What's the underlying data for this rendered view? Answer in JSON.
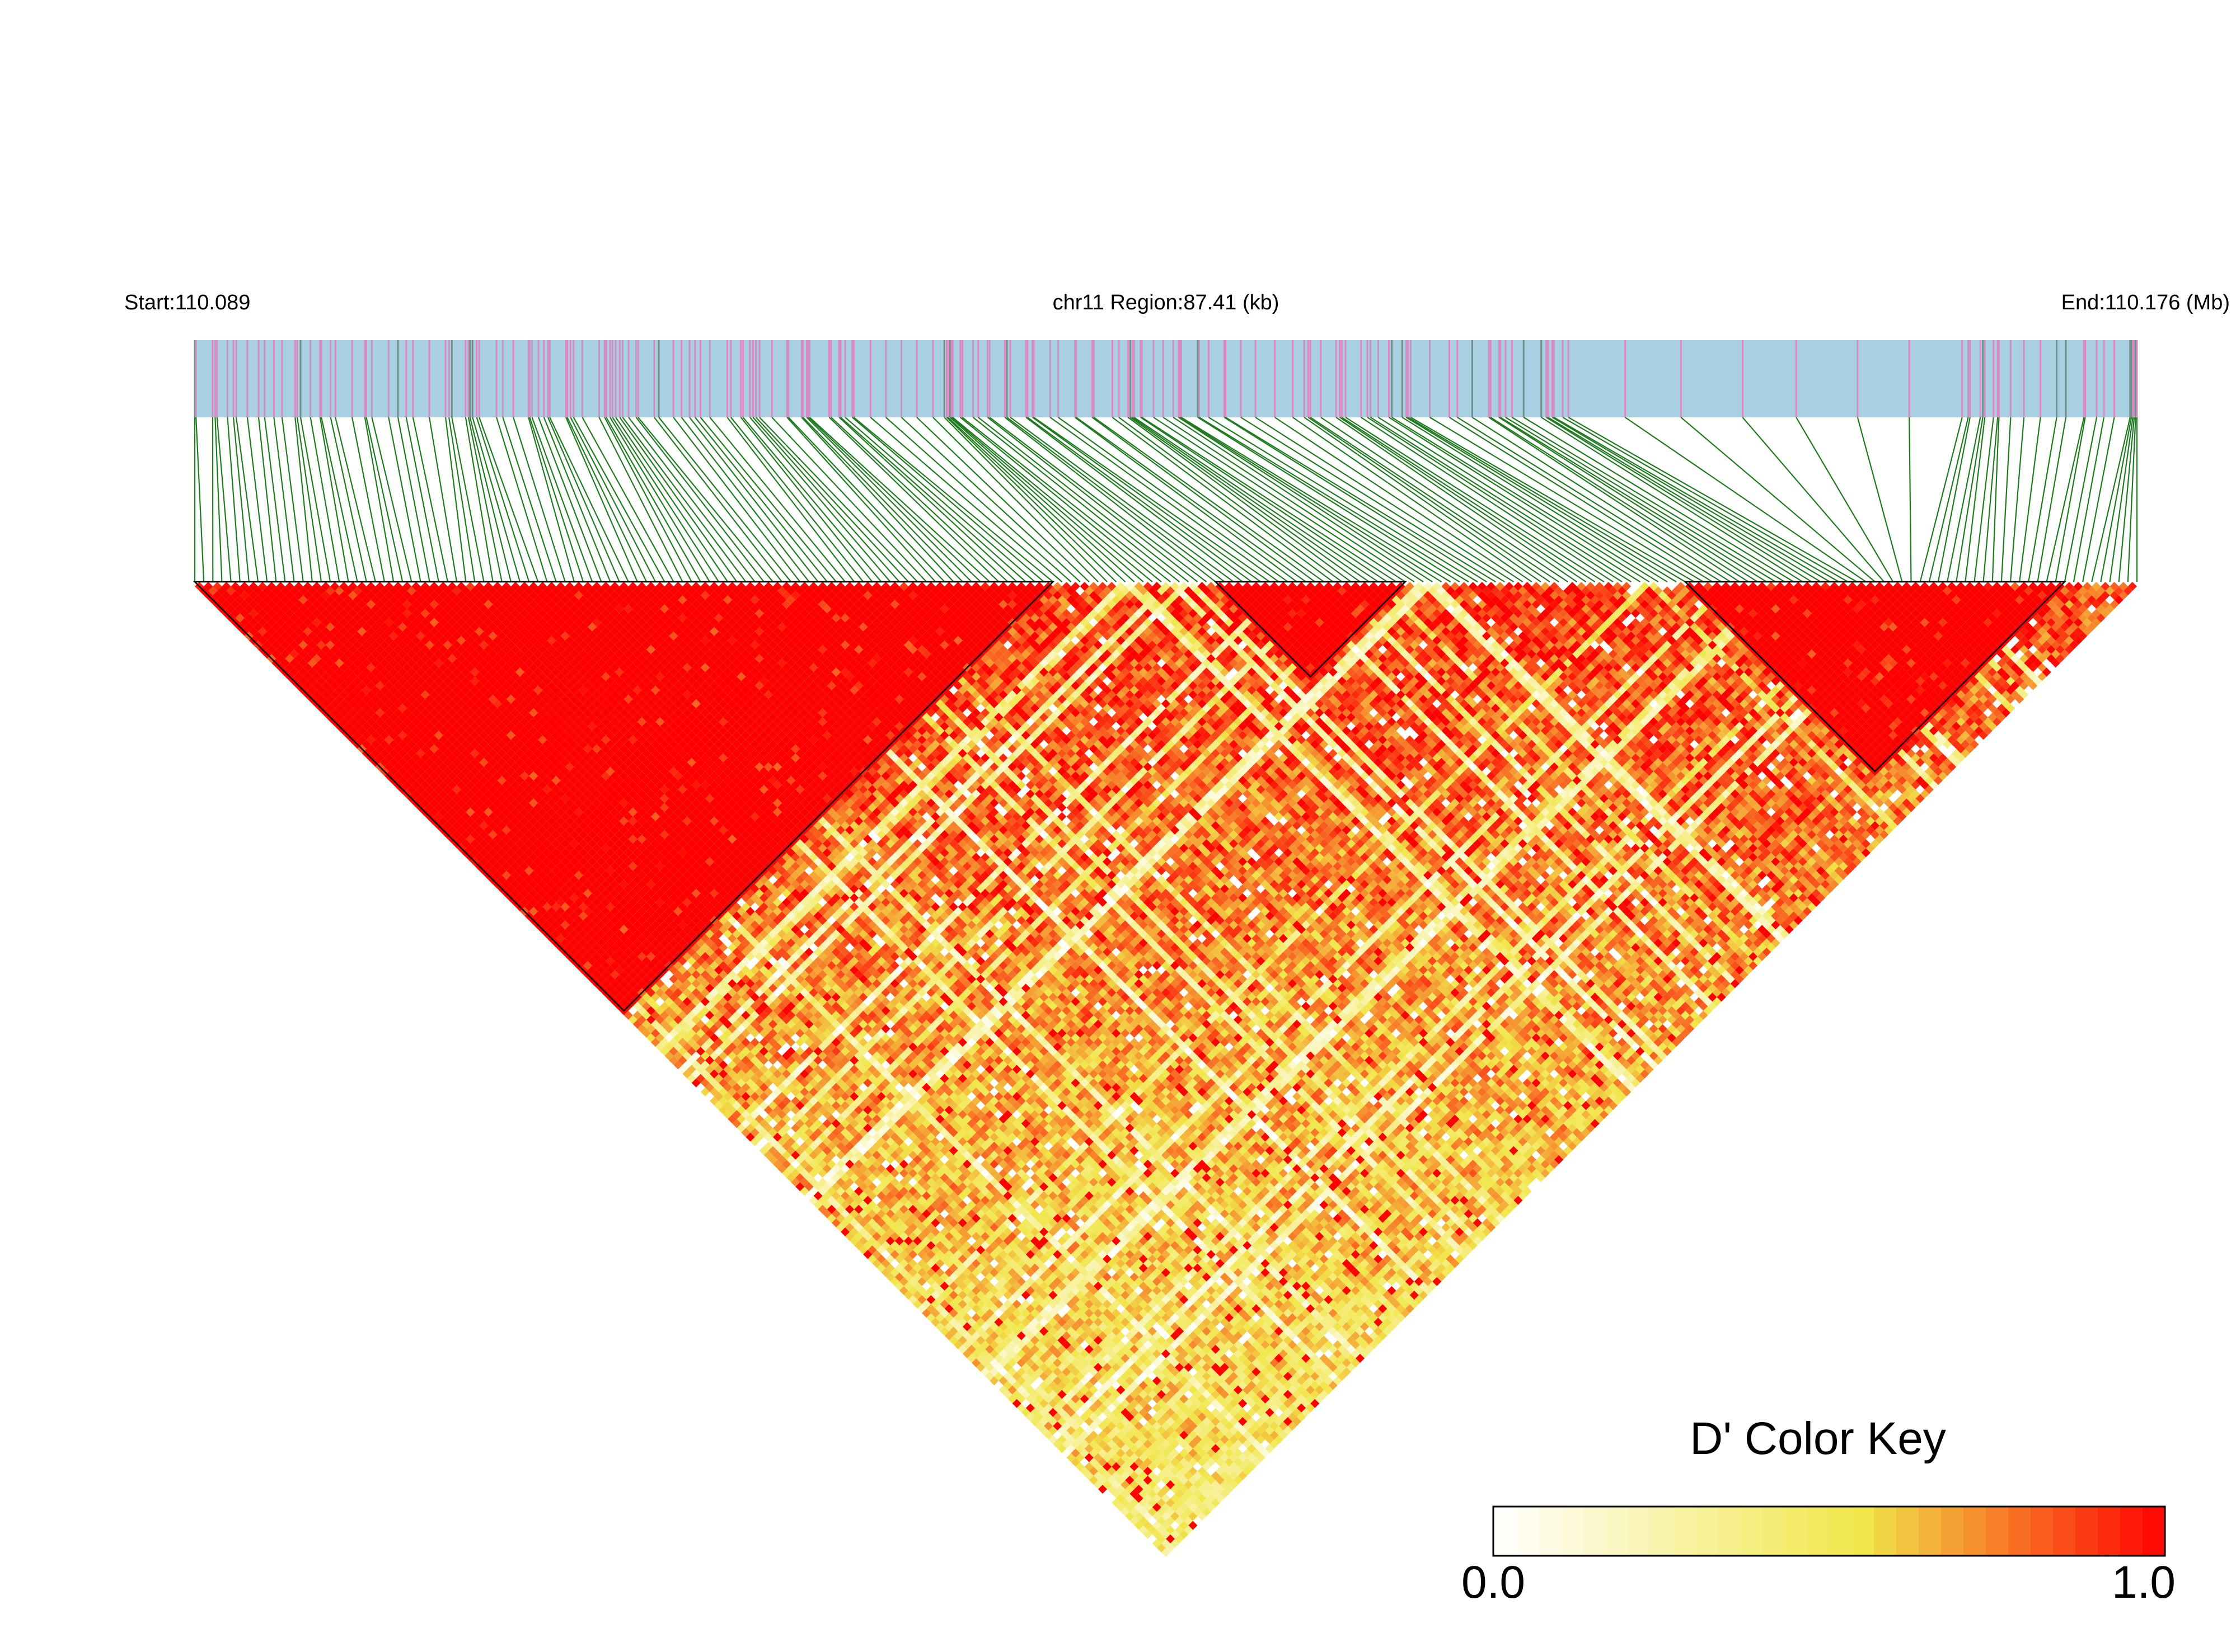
{
  "header": {
    "start_label": "Start:110.089",
    "region_label": "chr11 Region:87.41 (kb)",
    "end_label": "End:110.176 (Mb)"
  },
  "colors": {
    "track_background": "#a8cfe2",
    "snp_tick": "#d98ac4",
    "snp_tick_dark": "#6f8f8a",
    "connector": "#1f7a1f",
    "heatmap_low": "#ffffff",
    "heatmap_mid": "#f1e64a",
    "heatmap_high": "#ff0000"
  },
  "chart_data": {
    "type": "heatmap",
    "subtype": "linkage-disequilibrium triangle",
    "chromosome": "chr11",
    "region_start_mb": 110.089,
    "region_end_mb": 110.176,
    "region_length_kb": 87.41,
    "metric": "D'",
    "value_range": [
      0.0,
      1.0
    ],
    "ld_blocks": [
      {
        "first_snp": 1,
        "last_snp": 96,
        "mean_dprime": 0.97
      },
      {
        "first_snp": 114,
        "last_snp": 135,
        "mean_dprime": 0.99
      },
      {
        "first_snp": 166,
        "last_snp": 208,
        "mean_dprime": 0.99
      }
    ],
    "color_key": {
      "title": "D' Color Key",
      "min_label": "0.0",
      "max_label": "1.0",
      "stops": [
        "#ffffff",
        "#f1e64a",
        "#ff0000"
      ]
    }
  }
}
